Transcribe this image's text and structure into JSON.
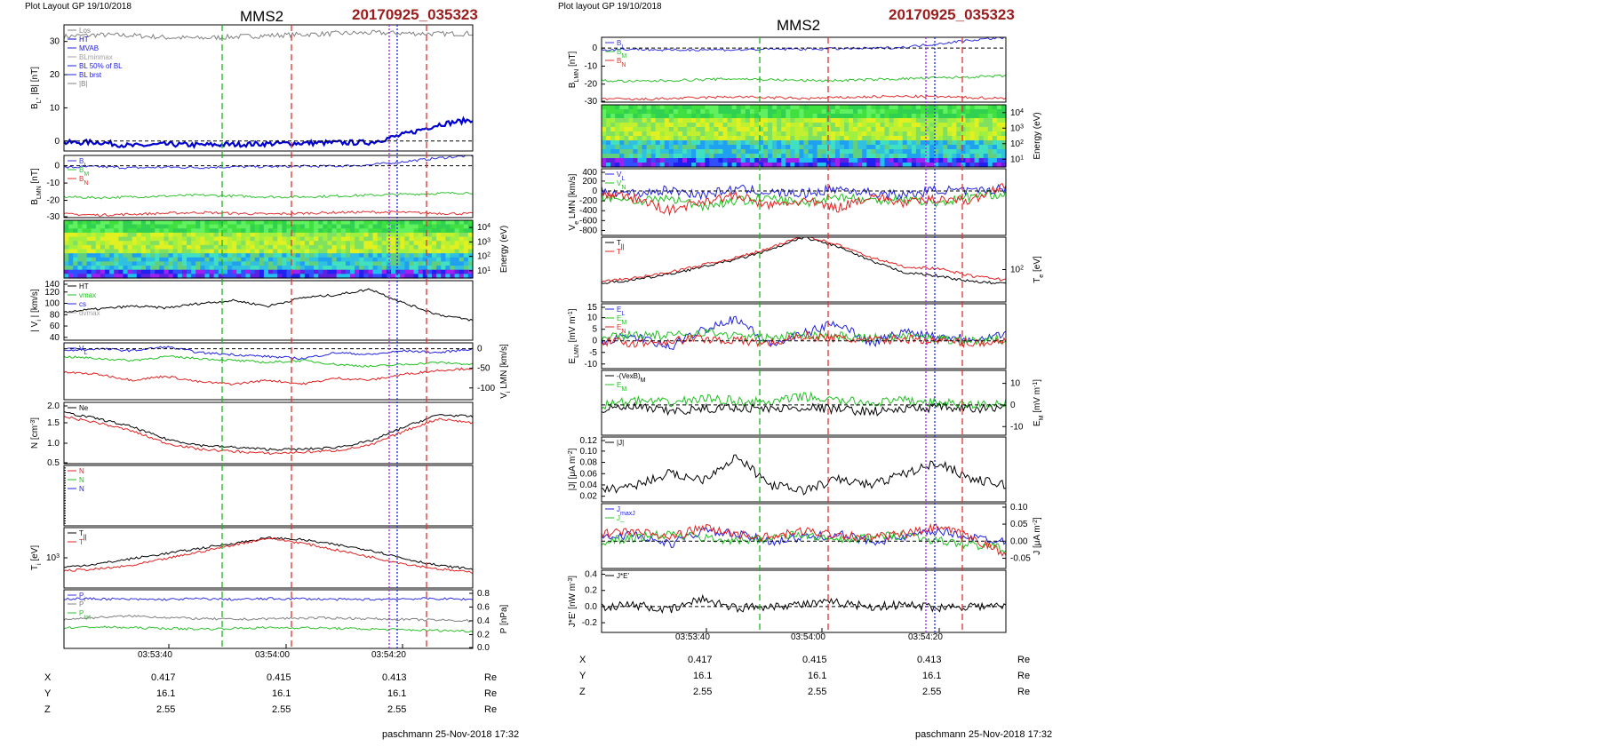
{
  "colors": {
    "green_line": "#1fb31f",
    "red_line": "#e23030",
    "blue_line": "#2020e0",
    "purple_line": "#a020f0",
    "timestamp": "#9b1c1c"
  },
  "figures": [
    {
      "header": "Plot Layout GP 19/10/2018",
      "title": "MMS2",
      "timestamp": "20170925_035323",
      "footer": "paschmann 25-Nov-2018 17:32",
      "time_ticks": [
        "03:53:40",
        "03:54:00",
        "03:54:20"
      ],
      "ephemeris": {
        "rows": [
          {
            "label": "X",
            "values": [
              "0.417",
              "0.415",
              "0.413"
            ],
            "unit": "Re"
          },
          {
            "label": "Y",
            "values": [
              "16.1",
              "16.1",
              "16.1"
            ],
            "unit": "Re"
          },
          {
            "label": "Z",
            "values": [
              "2.55",
              "2.55",
              "2.55"
            ],
            "unit": "Re"
          }
        ]
      }
    },
    {
      "header": "Plot layout GP 19/10/2018",
      "title": "MMS2",
      "timestamp": "20170925_035323",
      "footer": "paschmann 25-Nov-2018 17:32",
      "time_ticks": [
        "03:53:40",
        "03:54:00",
        "03:54:20"
      ],
      "ephemeris": {
        "rows": [
          {
            "label": "X",
            "values": [
              "0.417",
              "0.415",
              "0.413"
            ],
            "unit": "Re"
          },
          {
            "label": "Y",
            "values": [
              "16.1",
              "16.1",
              "16.1"
            ],
            "unit": "Re"
          },
          {
            "label": "Z",
            "values": [
              "2.55",
              "2.55",
              "2.55"
            ],
            "unit": "Re"
          }
        ]
      }
    }
  ],
  "chart_data": [
    {
      "type": "line",
      "figure": 0,
      "ylabel": "B_L, |B| [nT]",
      "yticks": [
        "0",
        "10",
        "20",
        "30"
      ],
      "ylim": [
        -3,
        35
      ],
      "legend": [
        "Los",
        "HT",
        "MVAB",
        "BLminmax",
        "BL 50% of BL",
        "BL brst",
        "|B|"
      ],
      "series": [
        {
          "name": "|B|",
          "color": "#808080",
          "values": [
            31.5,
            32.0,
            31.8,
            31.2,
            31.0,
            31.4,
            31.8,
            32.1,
            32.4,
            32.6,
            32.5,
            32.3,
            32.4
          ]
        },
        {
          "name": "BL brst",
          "color": "#0000cc",
          "values": [
            -0.5,
            -0.3,
            -1.5,
            -1.0,
            -1.2,
            -1.0,
            -0.8,
            -0.6,
            -0.5,
            -0.4,
            2.0,
            5.0,
            6.5
          ]
        }
      ]
    },
    {
      "type": "line",
      "figure": 0,
      "ylabel": "B_LMN [nT]",
      "yticks": [
        "0",
        "-10",
        "-20",
        "-30"
      ],
      "ylim": [
        -30,
        6
      ],
      "legend": [
        "B_L",
        "B_M",
        "B_N"
      ],
      "series": [
        {
          "name": "B_L",
          "color": "#3030e0",
          "values": [
            -1.0,
            -0.5,
            -1.2,
            -0.8,
            -1.0,
            -0.6,
            -0.5,
            -0.3,
            -0.2,
            0.5,
            2.5,
            4.5,
            6.0
          ]
        },
        {
          "name": "B_M",
          "color": "#30c030",
          "values": [
            -18.0,
            -18.5,
            -18.0,
            -17.5,
            -17.0,
            -17.5,
            -18.0,
            -18.0,
            -17.5,
            -17.0,
            -16.5,
            -16.0,
            -15.5
          ]
        },
        {
          "name": "B_N",
          "color": "#e03030",
          "values": [
            -28.0,
            -28.5,
            -28.0,
            -27.5,
            -27.0,
            -27.5,
            -28.0,
            -27.5,
            -27.0,
            -26.8,
            -27.0,
            -27.5,
            -27.8
          ]
        }
      ]
    },
    {
      "type": "heatmap",
      "figure": 0,
      "ylabel": "Energy (eV)",
      "yticks": [
        "10^4",
        "10^3",
        "10^2",
        "10^1"
      ]
    },
    {
      "type": "line",
      "figure": 0,
      "ylabel": "| V_i | [km/s]",
      "yticks": [
        "40",
        "60",
        "80",
        "100",
        "120",
        "140"
      ],
      "ylim": [
        35,
        140
      ],
      "legend": [
        "HT",
        "vmax",
        "cs",
        "dvmax"
      ],
      "series": [
        {
          "name": "|Vi|",
          "color": "#000000",
          "values": [
            85,
            90,
            95,
            92,
            100,
            105,
            95,
            110,
            115,
            125,
            100,
            80,
            70
          ]
        }
      ]
    },
    {
      "type": "line",
      "figure": 0,
      "ylabel": "V_i LMN [km/s]",
      "yticks": [
        "0",
        "-50",
        "-100"
      ],
      "ylim": [
        -130,
        15
      ],
      "legend": [
        "V_L"
      ],
      "series": [
        {
          "name": "V_L",
          "color": "#2020e0",
          "values": [
            -5,
            0,
            -5,
            5,
            -10,
            -15,
            -20,
            -25,
            -10,
            -15,
            -5,
            -10,
            0
          ]
        },
        {
          "name": "V_M",
          "color": "#20c020",
          "values": [
            -20,
            -25,
            -30,
            -20,
            -25,
            -30,
            -35,
            -30,
            -40,
            -45,
            -40,
            -35,
            -40
          ]
        },
        {
          "name": "V_N",
          "color": "#e02020",
          "values": [
            -60,
            -65,
            -80,
            -70,
            -85,
            -90,
            -80,
            -90,
            -75,
            -80,
            -65,
            -55,
            -50
          ]
        }
      ]
    },
    {
      "type": "line",
      "figure": 0,
      "ylabel": "N [cm^-3]",
      "yticks": [
        "0.5",
        "1.0",
        "1.5",
        "2.0"
      ],
      "ylim": [
        0.5,
        2.0
      ],
      "legend": [
        "Ne"
      ],
      "series": [
        {
          "name": "Ni",
          "color": "#000000",
          "values": [
            1.75,
            1.6,
            1.4,
            1.1,
            0.95,
            0.9,
            0.85,
            0.85,
            0.9,
            1.05,
            1.4,
            1.7,
            1.65
          ]
        },
        {
          "name": "Ne",
          "color": "#e02020",
          "values": [
            1.65,
            1.5,
            1.3,
            1.0,
            0.85,
            0.8,
            0.75,
            0.78,
            0.82,
            0.95,
            1.3,
            1.6,
            1.5
          ]
        }
      ]
    },
    {
      "type": "line",
      "figure": 0,
      "ylabel": "",
      "legend": [
        "N",
        "N",
        "N"
      ]
    },
    {
      "type": "line",
      "figure": 0,
      "ylabel": "T_i [eV]",
      "yticks": [
        "10^3"
      ],
      "legend": [
        "T_||",
        "T"
      ],
      "series": [
        {
          "name": "T",
          "color": "#000000",
          "values": [
            1.2,
            1.4,
            1.7,
            2.0,
            2.3,
            2.6,
            2.9,
            2.8,
            2.5,
            2.2,
            1.7,
            1.3,
            1.1
          ]
        },
        {
          "name": "T_||",
          "color": "#e02020",
          "values": [
            1.0,
            1.1,
            1.3,
            1.7,
            2.1,
            2.5,
            2.9,
            2.6,
            2.2,
            1.8,
            1.4,
            1.1,
            0.9
          ]
        }
      ]
    },
    {
      "type": "line",
      "figure": 0,
      "ylabel": "P [nPa]",
      "yticks": [
        "0.0",
        "0.2",
        "0.4",
        "0.6",
        "0.8"
      ],
      "ylim": [
        0,
        0.85
      ],
      "legend": [
        "P_i",
        "P",
        "P_tot"
      ],
      "series": [
        {
          "name": "P",
          "color": "#3030e0",
          "values": [
            0.72,
            0.72,
            0.71,
            0.71,
            0.72,
            0.71,
            0.72,
            0.72,
            0.71,
            0.71,
            0.72,
            0.72,
            0.71
          ]
        },
        {
          "name": "P_i",
          "color": "#808080",
          "values": [
            0.42,
            0.45,
            0.47,
            0.45,
            0.43,
            0.42,
            0.43,
            0.44,
            0.44,
            0.43,
            0.42,
            0.41,
            0.4
          ]
        },
        {
          "name": "P_tot",
          "color": "#30c030",
          "values": [
            0.3,
            0.31,
            0.3,
            0.29,
            0.28,
            0.29,
            0.3,
            0.3,
            0.29,
            0.28,
            0.27,
            0.26,
            0.25
          ]
        }
      ]
    },
    {
      "type": "line",
      "figure": 1,
      "ylabel": "B_LMN [nT]",
      "yticks": [
        "0",
        "-10",
        "-20",
        "-30"
      ],
      "ylim": [
        -30,
        6
      ],
      "legend": [
        "B_L",
        "B_M",
        "B_N"
      ],
      "series": [
        {
          "name": "B_L",
          "color": "#3030e0",
          "values": [
            -1.0,
            -0.5,
            -1.2,
            -0.8,
            -1.0,
            -0.6,
            -0.5,
            -0.3,
            -0.2,
            0.5,
            2.5,
            4.5,
            6.0
          ]
        },
        {
          "name": "B_M",
          "color": "#30c030",
          "values": [
            -18.0,
            -18.5,
            -18.0,
            -17.5,
            -17.0,
            -17.5,
            -18.0,
            -18.0,
            -17.5,
            -17.0,
            -16.5,
            -16.0,
            -15.5
          ]
        },
        {
          "name": "B_N",
          "color": "#e03030",
          "values": [
            -28.0,
            -28.5,
            -28.0,
            -27.5,
            -27.0,
            -27.5,
            -28.0,
            -27.5,
            -27.0,
            -26.8,
            -27.0,
            -27.5,
            -27.8
          ]
        }
      ]
    },
    {
      "type": "heatmap",
      "figure": 1,
      "ylabel": "Energy (eV)",
      "yticks": [
        "10^4",
        "10^3",
        "10^2",
        "10^1"
      ]
    },
    {
      "type": "line",
      "figure": 1,
      "ylabel": "V_e LMN [km/s]",
      "yticks": [
        "400",
        "200",
        "0",
        "-200",
        "-400",
        "-600",
        "-800"
      ],
      "ylim": [
        -900,
        450
      ],
      "legend": [
        "V_L",
        "V_N"
      ],
      "series": [
        {
          "name": "V_L",
          "color": "#2020e0",
          "values": [
            0,
            -50,
            20,
            -80,
            40,
            -30,
            -60,
            50,
            -40,
            -90,
            30,
            -20,
            60
          ]
        },
        {
          "name": "V_M",
          "color": "#20c020",
          "values": [
            -100,
            -200,
            -150,
            -300,
            -200,
            -150,
            -250,
            -100,
            -200,
            -150,
            -250,
            -100,
            -50
          ]
        },
        {
          "name": "V_N",
          "color": "#e02020",
          "values": [
            -50,
            -150,
            -400,
            -200,
            -100,
            -300,
            -200,
            -350,
            -100,
            -250,
            -150,
            -200,
            150
          ]
        }
      ]
    },
    {
      "type": "line",
      "figure": 1,
      "ylabel": "T_e [eV]",
      "yticks": [
        "10^2"
      ],
      "legend": [
        "T_||",
        "T"
      ],
      "series": [
        {
          "name": "T",
          "color": "#000000",
          "values": [
            1.0,
            1.2,
            1.5,
            1.9,
            2.3,
            2.8,
            3.5,
            3.0,
            2.2,
            1.6,
            1.4,
            1.1,
            1.0
          ]
        },
        {
          "name": "T_||",
          "color": "#e02020",
          "values": [
            1.1,
            1.3,
            1.6,
            2.0,
            2.4,
            2.9,
            3.6,
            3.1,
            2.4,
            1.9,
            1.8,
            1.4,
            1.2
          ]
        }
      ]
    },
    {
      "type": "line",
      "figure": 1,
      "ylabel": "E_LMN [mV m^-1]",
      "yticks": [
        "15",
        "10",
        "5",
        "0",
        "-5",
        "-10"
      ],
      "ylim": [
        -12,
        16
      ],
      "legend": [
        "E_L",
        "E_M",
        "E_N"
      ],
      "series": [
        {
          "name": "E_L",
          "color": "#2020e0",
          "values": [
            0,
            2,
            -3,
            5,
            10,
            -2,
            3,
            8,
            -1,
            4,
            2,
            1,
            3
          ]
        },
        {
          "name": "E_M",
          "color": "#20c020",
          "values": [
            1,
            3,
            2,
            4,
            2,
            1,
            3,
            2,
            1,
            2,
            1,
            0,
            1
          ]
        },
        {
          "name": "E_N",
          "color": "#e02020",
          "values": [
            0,
            -1,
            0,
            1,
            0,
            -1,
            2,
            1,
            0,
            1,
            0,
            -1,
            0
          ]
        }
      ]
    },
    {
      "type": "line",
      "figure": 1,
      "ylabel": "E_M [mV m^-1]",
      "yticks": [
        "10",
        "0",
        "-10"
      ],
      "ylim": [
        -14,
        16
      ],
      "legend": [
        "-(VexB)_M",
        "E_M"
      ],
      "series": [
        {
          "name": "-(VexB)_M",
          "color": "#000000",
          "values": [
            -2,
            -1,
            -3,
            -2,
            -1,
            -2,
            -1,
            -2,
            -3,
            -2,
            -1,
            -2,
            -1
          ]
        },
        {
          "name": "E_M",
          "color": "#20c020",
          "values": [
            0,
            2,
            1,
            3,
            2,
            1,
            4,
            2,
            1,
            2,
            1,
            0,
            1
          ]
        }
      ]
    },
    {
      "type": "line",
      "figure": 1,
      "ylabel": "|J| [μA m^-2]",
      "yticks": [
        "0.12",
        "0.10",
        "0.08",
        "0.06",
        "0.04",
        "0.02"
      ],
      "ylim": [
        0.01,
        0.125
      ],
      "legend": [
        "|J|"
      ],
      "series": [
        {
          "name": "|J|",
          "color": "#000000",
          "values": [
            0.03,
            0.04,
            0.06,
            0.05,
            0.09,
            0.04,
            0.03,
            0.05,
            0.04,
            0.06,
            0.08,
            0.05,
            0.04
          ]
        }
      ]
    },
    {
      "type": "line",
      "figure": 1,
      "ylabel": "J [μA m^-2]",
      "yticks": [
        "0.10",
        "0.05",
        "0.00",
        "-0.05"
      ],
      "ylim": [
        -0.08,
        0.11
      ],
      "legend": [
        "J_maxJ",
        "J_"
      ],
      "series": [
        {
          "name": "J_L",
          "color": "#2020e0",
          "values": [
            0.01,
            0.02,
            -0.01,
            0.03,
            0.02,
            0.0,
            0.01,
            0.02,
            0.0,
            0.01,
            0.03,
            0.01,
            0.0
          ]
        },
        {
          "name": "J_M",
          "color": "#20c020",
          "values": [
            0.0,
            0.01,
            0.02,
            0.01,
            0.0,
            0.01,
            0.02,
            0.0,
            0.01,
            0.02,
            0.0,
            -0.01,
            -0.02
          ]
        },
        {
          "name": "J_N",
          "color": "#e02020",
          "values": [
            0.02,
            0.03,
            0.01,
            0.04,
            0.02,
            0.01,
            0.03,
            0.02,
            0.01,
            0.02,
            0.04,
            0.01,
            -0.04
          ]
        }
      ]
    },
    {
      "type": "line",
      "figure": 1,
      "ylabel": "J*E' [nW m^-3]",
      "yticks": [
        "0.4",
        "0.2",
        "0.0",
        "-0.2"
      ],
      "ylim": [
        -0.32,
        0.45
      ],
      "legend": [
        "J*E'"
      ],
      "series": [
        {
          "name": "J*E'",
          "color": "#000000",
          "values": [
            0.0,
            0.02,
            -0.05,
            0.1,
            -0.02,
            0.01,
            0.03,
            0.05,
            0.0,
            0.02,
            -0.01,
            0.01,
            0.0
          ]
        }
      ]
    }
  ]
}
